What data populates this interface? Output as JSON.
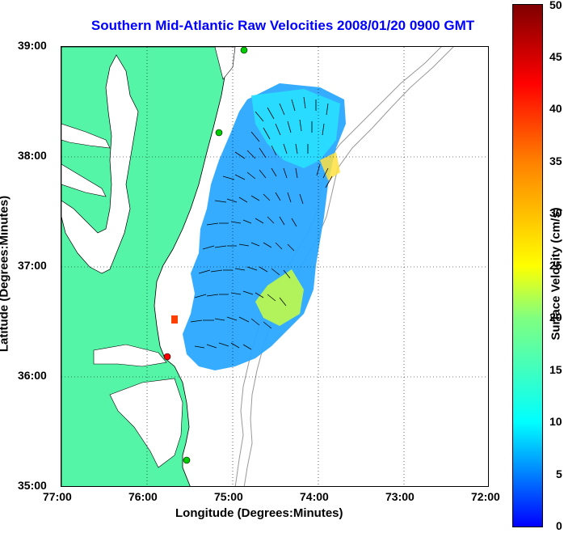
{
  "title": "Southern Mid-Atlantic Raw Velocities 2008/01/20 0900 GMT",
  "axes": {
    "xlabel": "Longitude (Degrees:Minutes)",
    "ylabel": "Latitude (Degrees:Minutes)",
    "xticks": [
      "77:00",
      "76:00",
      "75:00",
      "74:00",
      "73:00",
      "72:00"
    ],
    "yticks": [
      "39:00",
      "38:00",
      "37:00",
      "36:00",
      "35:00"
    ]
  },
  "colorbar": {
    "label": "Surface Velocity (cm/s)",
    "ticks": [
      "50",
      "45",
      "40",
      "35",
      "30",
      "25",
      "20",
      "15",
      "10",
      "5",
      "0"
    ],
    "range": [
      0,
      50
    ]
  },
  "colors": {
    "land": "#55f5a8",
    "title": "#0000ff",
    "coast": "#000000",
    "bathymetry": "#999999",
    "station_green": "#00cc00",
    "station_red": "#ff0000"
  }
}
